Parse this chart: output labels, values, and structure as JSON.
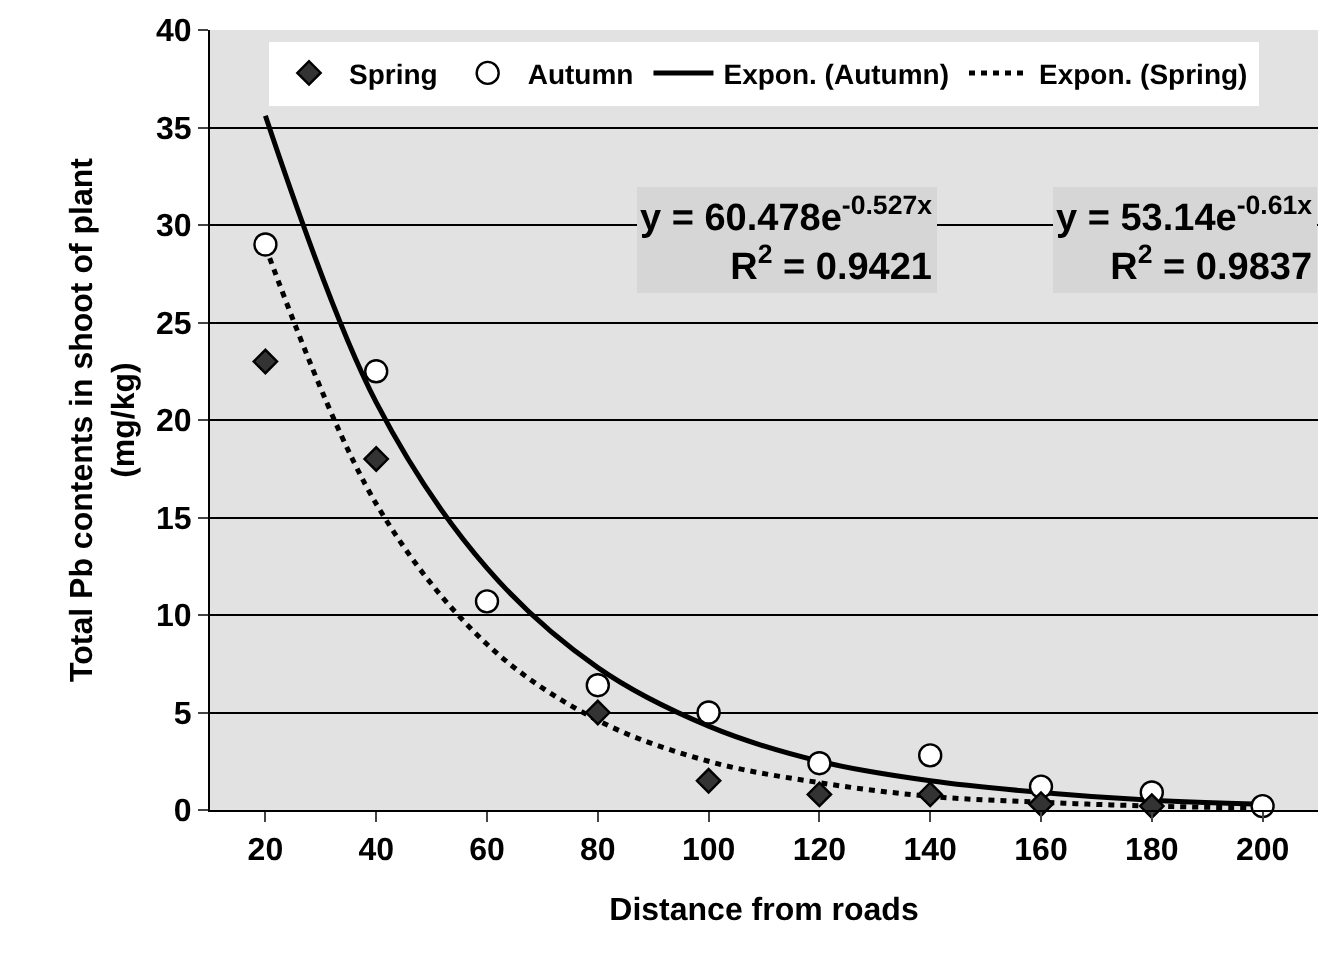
{
  "chart_data": {
    "type": "scatter",
    "xlabel": "Distance from roads",
    "ylabel": "Total Pb contents in shoot of plant\n(mg/kg)",
    "categories": [
      "20",
      "40",
      "60",
      "80",
      "100",
      "120",
      "140",
      "160",
      "180",
      "200"
    ],
    "series": [
      {
        "name": "Spring",
        "marker": "diamond",
        "color": "#333333",
        "values": [
          23,
          18,
          null,
          5,
          1.5,
          0.8,
          0.8,
          0.3,
          0.2,
          null
        ]
      },
      {
        "name": "Autumn",
        "marker": "circle",
        "color": "#ffffff",
        "values": [
          29,
          22.5,
          10.7,
          6.4,
          5,
          2.4,
          2.8,
          1.2,
          0.9,
          0.2
        ]
      },
      {
        "name": "Expon. (Autumn)",
        "type": "line",
        "marker": "none",
        "line_style": "solid",
        "color": "#000000",
        "values": [
          35.6,
          20.9,
          12.4,
          7.3,
          4.3,
          2.5,
          1.5,
          0.9,
          0.5,
          0.3
        ]
      },
      {
        "name": "Expon. (Spring)",
        "type": "line",
        "marker": "none",
        "line_style": "dotted",
        "color": "#000000",
        "values": [
          28.9,
          15.7,
          8.5,
          4.6,
          2.5,
          1.4,
          0.7,
          0.4,
          0.2,
          0.1
        ]
      }
    ],
    "annotations": [
      "y = 60.478e$^{-0.527x}$\nR$^{2}$ = 0.9421",
      "y = 53.14e$^{-0.61x}$\nR$^{2}$ = 0.9837"
    ],
    "ylim": [
      0,
      40
    ],
    "yticks": [
      0,
      5,
      10,
      15,
      20,
      25,
      30,
      35,
      40
    ],
    "grid": "y",
    "legend": "top"
  }
}
